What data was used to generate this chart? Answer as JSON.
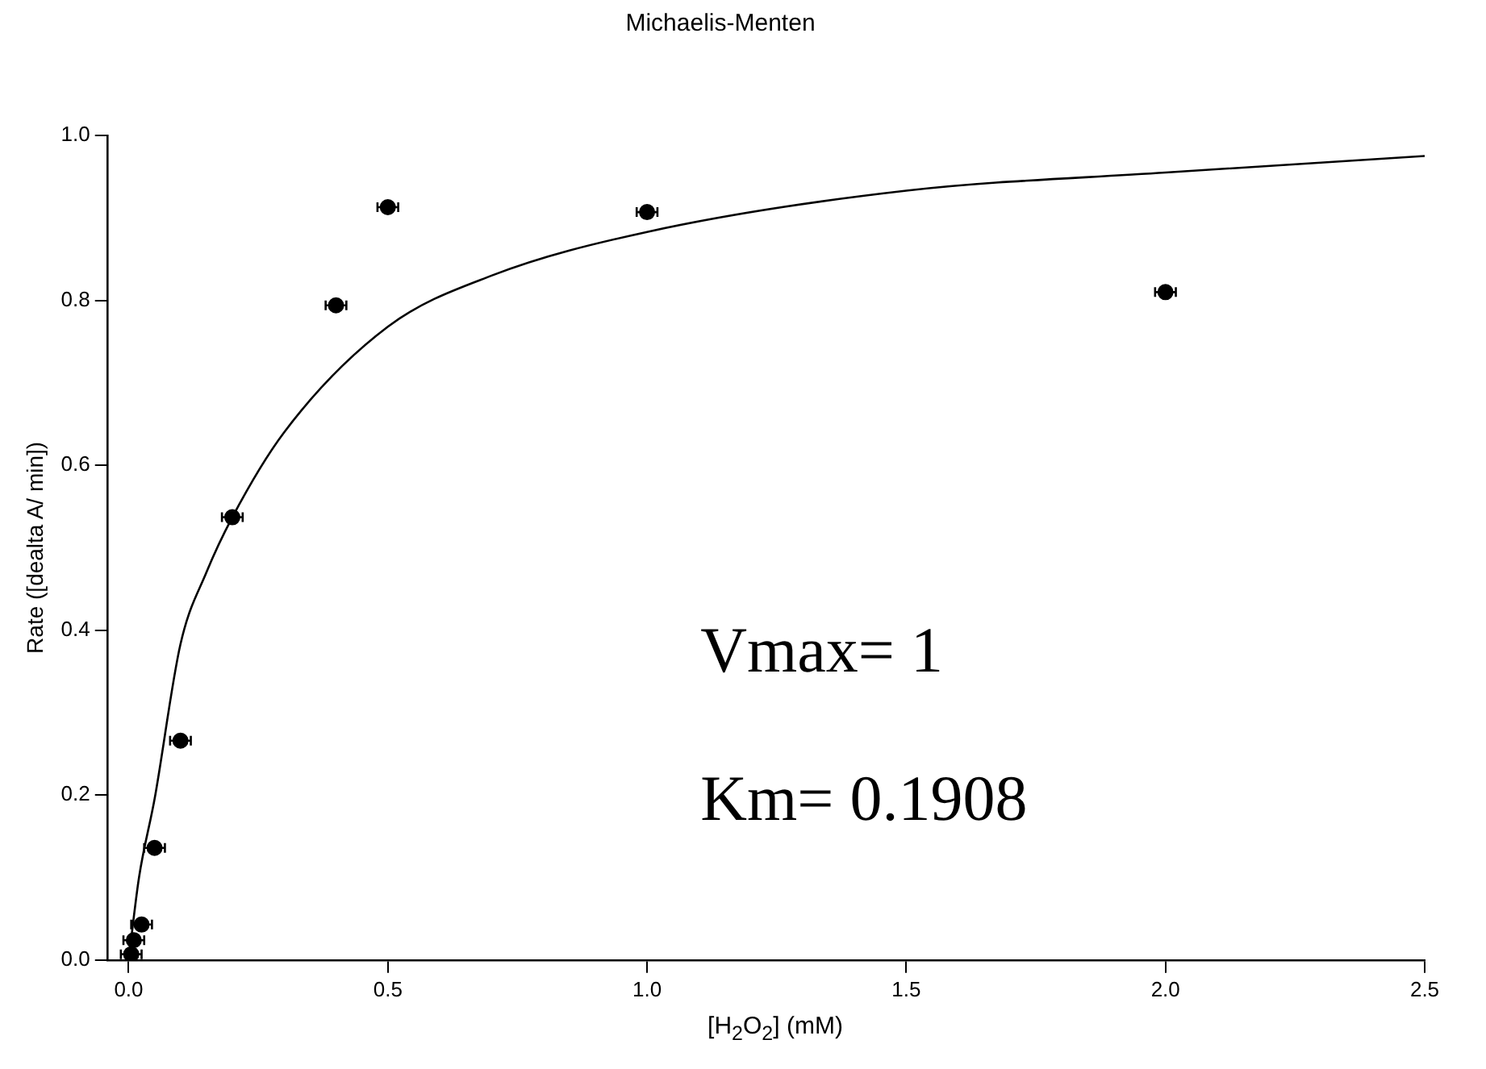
{
  "chart_data": {
    "type": "scatter",
    "title": "Michaelis-Menten",
    "xlabel": "[H$_{2}$O$_{2}$] (mM)",
    "ylabel": "Rate ([dealta A/ min])",
    "xlim": [
      -0.04,
      2.5
    ],
    "ylim": [
      0,
      1
    ],
    "xticks": [
      {
        "value": 0,
        "label": "0.0"
      },
      {
        "value": 0.5,
        "label": "0.5"
      },
      {
        "value": 1,
        "label": "1.0"
      },
      {
        "value": 1.5,
        "label": "1.5"
      },
      {
        "value": 2,
        "label": "2.0"
      },
      {
        "value": 2.5,
        "label": "2.5"
      }
    ],
    "yticks": [
      {
        "value": 0,
        "label": "0.0"
      },
      {
        "value": 0.2,
        "label": "0.2"
      },
      {
        "value": 0.4,
        "label": "0.4"
      },
      {
        "value": 0.6,
        "label": "0.6"
      },
      {
        "value": 0.8,
        "label": "0.8"
      },
      {
        "value": 1,
        "label": "1.0"
      }
    ],
    "marker": "circle",
    "grid": false,
    "legend": false,
    "annotations": [
      "Vmax= 1",
      "Km= 0.1908"
    ],
    "series": [
      {
        "color": "#000000",
        "x": [
          0.005,
          0.01,
          0.025,
          0.05,
          0.1,
          0.2,
          0.4,
          0.5,
          1.0,
          2.0
        ],
        "values": [
          0.007,
          0.024,
          0.043,
          0.136,
          0.266,
          0.537,
          0.794,
          0.913,
          0.907,
          0.81
        ],
        "xerrors": [
          0.02,
          0.02,
          0.02,
          0.02,
          0.02,
          0.02,
          0.02,
          0.02,
          0.02,
          0.02
        ]
      },
      {
        "type": "line",
        "color": "#000000",
        "marker": "none",
        "x": [
          0,
          0.02,
          0.05,
          0.1,
          0.15,
          0.2,
          0.3,
          0.5,
          0.7,
          1.0,
          1.5,
          2.0,
          2.5
        ],
        "values": [
          0,
          0.1,
          0.195,
          0.383,
          0.47,
          0.537,
          0.64,
          0.768,
          0.83,
          0.883,
          0.933,
          0.955,
          0.975
        ]
      }
    ]
  }
}
